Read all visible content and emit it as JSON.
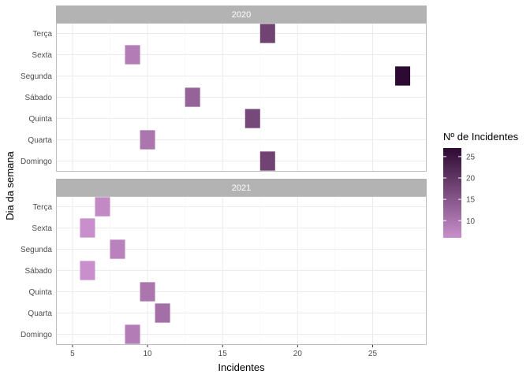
{
  "chart_data": {
    "type": "heatmap",
    "xlabel": "Incidentes",
    "ylabel": "Dia da semana",
    "xlim": [
      3.9,
      28.6
    ],
    "xticks": [
      5,
      10,
      15,
      20,
      25
    ],
    "days": [
      "Domingo",
      "Quarta",
      "Quinta",
      "Sábado",
      "Segunda",
      "Sexta",
      "Terça"
    ],
    "facets": [
      {
        "label": "2020",
        "points": [
          {
            "day": "Terça",
            "x": 18,
            "value": 18
          },
          {
            "day": "Sexta",
            "x": 9,
            "value": 9
          },
          {
            "day": "Segunda",
            "x": 27,
            "value": 27
          },
          {
            "day": "Sábado",
            "x": 13,
            "value": 13
          },
          {
            "day": "Quinta",
            "x": 17,
            "value": 17
          },
          {
            "day": "Quarta",
            "x": 10,
            "value": 10
          },
          {
            "day": "Domingo",
            "x": 18,
            "value": 18
          }
        ]
      },
      {
        "label": "2021",
        "points": [
          {
            "day": "Terça",
            "x": 7,
            "value": 7
          },
          {
            "day": "Sexta",
            "x": 6,
            "value": 6
          },
          {
            "day": "Segunda",
            "x": 8,
            "value": 8
          },
          {
            "day": "Sábado",
            "x": 6,
            "value": 6
          },
          {
            "day": "Quinta",
            "x": 10,
            "value": 10
          },
          {
            "day": "Quarta",
            "x": 11,
            "value": 11
          },
          {
            "day": "Domingo",
            "x": 9,
            "value": 9
          }
        ]
      }
    ],
    "legend": {
      "title": "Nº de Incidentes",
      "placement": "right",
      "min": 6,
      "max": 27,
      "breaks": [
        10,
        15,
        20,
        25
      ],
      "low_color": "#c98fcc",
      "high_color": "#2d0a31"
    },
    "colors": {
      "panel_border": "#bdbdbd",
      "strip_fill": "#b3b3b3",
      "grid": "#ebebeb",
      "axis_text": "#4d4d4d"
    }
  }
}
